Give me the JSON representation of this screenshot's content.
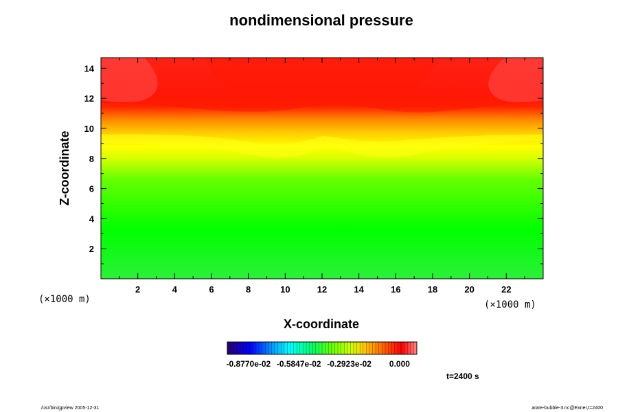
{
  "chart_data": {
    "type": "heatmap",
    "title": "nondimensional pressure",
    "xlabel": "X-coordinate",
    "ylabel": "Z-coordinate",
    "x_unit": "(×1000 m)",
    "y_unit": "(×1000 m)",
    "xlim": [
      0,
      24
    ],
    "ylim": [
      0,
      14.7
    ],
    "x_ticks": [
      2,
      4,
      6,
      8,
      10,
      12,
      14,
      16,
      18,
      20,
      22
    ],
    "y_ticks": [
      2,
      4,
      6,
      8,
      10,
      12,
      14
    ],
    "colorbar_ticks": [
      "-0.8770e-02",
      "-0.5847e-02",
      "-0.2923e-02",
      "0.000"
    ],
    "colorbar_range": [
      -0.01,
      0.001
    ],
    "colors": {
      "low": "#00ff00",
      "mid": "#ffff00",
      "high": "#ff0000"
    },
    "time_label": "t=2400 s",
    "footer_left": "/usr/bin/gpview 2005-12-31",
    "footer_right": "arare-bubble-3.nc@Exner,t=2400"
  }
}
